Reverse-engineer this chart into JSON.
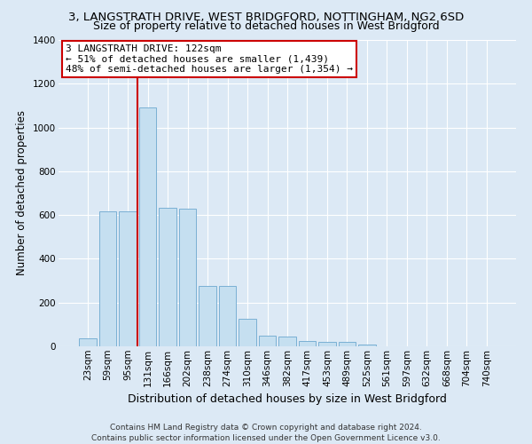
{
  "title": "3, LANGSTRATH DRIVE, WEST BRIDGFORD, NOTTINGHAM, NG2 6SD",
  "subtitle": "Size of property relative to detached houses in West Bridgford",
  "xlabel": "Distribution of detached houses by size in West Bridgford",
  "ylabel": "Number of detached properties",
  "categories": [
    "23sqm",
    "59sqm",
    "95sqm",
    "131sqm",
    "166sqm",
    "202sqm",
    "238sqm",
    "274sqm",
    "310sqm",
    "346sqm",
    "382sqm",
    "417sqm",
    "453sqm",
    "489sqm",
    "525sqm",
    "561sqm",
    "597sqm",
    "632sqm",
    "668sqm",
    "704sqm",
    "740sqm"
  ],
  "values": [
    35,
    615,
    615,
    1090,
    635,
    630,
    275,
    275,
    125,
    50,
    45,
    25,
    20,
    20,
    10,
    0,
    0,
    0,
    0,
    0,
    0
  ],
  "bar_color": "#c5dff0",
  "bar_edge_color": "#7ab0d4",
  "vline_color": "#cc0000",
  "vline_x_index": 3,
  "annotation_text": "3 LANGSTRATH DRIVE: 122sqm\n← 51% of detached houses are smaller (1,439)\n48% of semi-detached houses are larger (1,354) →",
  "annotation_box_facecolor": "#ffffff",
  "annotation_box_edgecolor": "#cc0000",
  "ylim": [
    0,
    1400
  ],
  "yticks": [
    0,
    200,
    400,
    600,
    800,
    1000,
    1200,
    1400
  ],
  "background_color": "#dce9f5",
  "plot_bg_color": "#dce9f5",
  "footer1": "Contains HM Land Registry data © Crown copyright and database right 2024.",
  "footer2": "Contains public sector information licensed under the Open Government Licence v3.0.",
  "title_fontsize": 9.5,
  "subtitle_fontsize": 9,
  "xlabel_fontsize": 9,
  "ylabel_fontsize": 8.5,
  "tick_fontsize": 7.5,
  "annotation_fontsize": 8,
  "footer_fontsize": 6.5
}
